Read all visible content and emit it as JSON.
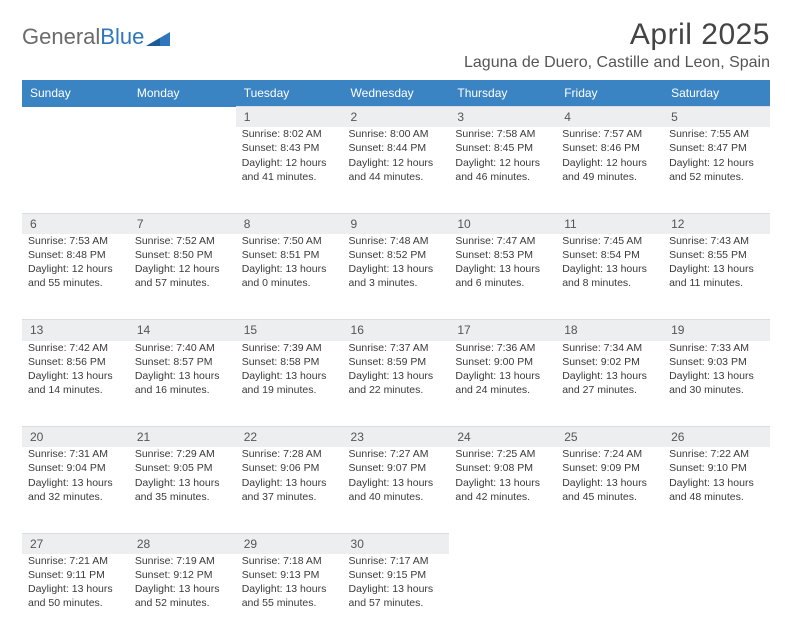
{
  "logo": {
    "part1": "General",
    "part2": "Blue"
  },
  "title": "April 2025",
  "location": "Laguna de Duero, Castille and Leon, Spain",
  "colors": {
    "header_bg": "#3b84c4",
    "header_fg": "#ffffff",
    "daynum_bg": "#eceef0",
    "page_bg": "#ffffff",
    "logo_gray": "#6b6b6b",
    "logo_blue": "#2f76bd"
  },
  "typography": {
    "title_fontsize": 30,
    "location_fontsize": 16,
    "dayheader_fontsize": 12,
    "cell_fontsize": 10.5
  },
  "day_headers": [
    "Sunday",
    "Monday",
    "Tuesday",
    "Wednesday",
    "Thursday",
    "Friday",
    "Saturday"
  ],
  "weeks": [
    [
      null,
      null,
      {
        "n": "1",
        "sr": "Sunrise: 8:02 AM",
        "ss": "Sunset: 8:43 PM",
        "dl": "Daylight: 12 hours and 41 minutes."
      },
      {
        "n": "2",
        "sr": "Sunrise: 8:00 AM",
        "ss": "Sunset: 8:44 PM",
        "dl": "Daylight: 12 hours and 44 minutes."
      },
      {
        "n": "3",
        "sr": "Sunrise: 7:58 AM",
        "ss": "Sunset: 8:45 PM",
        "dl": "Daylight: 12 hours and 46 minutes."
      },
      {
        "n": "4",
        "sr": "Sunrise: 7:57 AM",
        "ss": "Sunset: 8:46 PM",
        "dl": "Daylight: 12 hours and 49 minutes."
      },
      {
        "n": "5",
        "sr": "Sunrise: 7:55 AM",
        "ss": "Sunset: 8:47 PM",
        "dl": "Daylight: 12 hours and 52 minutes."
      }
    ],
    [
      {
        "n": "6",
        "sr": "Sunrise: 7:53 AM",
        "ss": "Sunset: 8:48 PM",
        "dl": "Daylight: 12 hours and 55 minutes."
      },
      {
        "n": "7",
        "sr": "Sunrise: 7:52 AM",
        "ss": "Sunset: 8:50 PM",
        "dl": "Daylight: 12 hours and 57 minutes."
      },
      {
        "n": "8",
        "sr": "Sunrise: 7:50 AM",
        "ss": "Sunset: 8:51 PM",
        "dl": "Daylight: 13 hours and 0 minutes."
      },
      {
        "n": "9",
        "sr": "Sunrise: 7:48 AM",
        "ss": "Sunset: 8:52 PM",
        "dl": "Daylight: 13 hours and 3 minutes."
      },
      {
        "n": "10",
        "sr": "Sunrise: 7:47 AM",
        "ss": "Sunset: 8:53 PM",
        "dl": "Daylight: 13 hours and 6 minutes."
      },
      {
        "n": "11",
        "sr": "Sunrise: 7:45 AM",
        "ss": "Sunset: 8:54 PM",
        "dl": "Daylight: 13 hours and 8 minutes."
      },
      {
        "n": "12",
        "sr": "Sunrise: 7:43 AM",
        "ss": "Sunset: 8:55 PM",
        "dl": "Daylight: 13 hours and 11 minutes."
      }
    ],
    [
      {
        "n": "13",
        "sr": "Sunrise: 7:42 AM",
        "ss": "Sunset: 8:56 PM",
        "dl": "Daylight: 13 hours and 14 minutes."
      },
      {
        "n": "14",
        "sr": "Sunrise: 7:40 AM",
        "ss": "Sunset: 8:57 PM",
        "dl": "Daylight: 13 hours and 16 minutes."
      },
      {
        "n": "15",
        "sr": "Sunrise: 7:39 AM",
        "ss": "Sunset: 8:58 PM",
        "dl": "Daylight: 13 hours and 19 minutes."
      },
      {
        "n": "16",
        "sr": "Sunrise: 7:37 AM",
        "ss": "Sunset: 8:59 PM",
        "dl": "Daylight: 13 hours and 22 minutes."
      },
      {
        "n": "17",
        "sr": "Sunrise: 7:36 AM",
        "ss": "Sunset: 9:00 PM",
        "dl": "Daylight: 13 hours and 24 minutes."
      },
      {
        "n": "18",
        "sr": "Sunrise: 7:34 AM",
        "ss": "Sunset: 9:02 PM",
        "dl": "Daylight: 13 hours and 27 minutes."
      },
      {
        "n": "19",
        "sr": "Sunrise: 7:33 AM",
        "ss": "Sunset: 9:03 PM",
        "dl": "Daylight: 13 hours and 30 minutes."
      }
    ],
    [
      {
        "n": "20",
        "sr": "Sunrise: 7:31 AM",
        "ss": "Sunset: 9:04 PM",
        "dl": "Daylight: 13 hours and 32 minutes."
      },
      {
        "n": "21",
        "sr": "Sunrise: 7:29 AM",
        "ss": "Sunset: 9:05 PM",
        "dl": "Daylight: 13 hours and 35 minutes."
      },
      {
        "n": "22",
        "sr": "Sunrise: 7:28 AM",
        "ss": "Sunset: 9:06 PM",
        "dl": "Daylight: 13 hours and 37 minutes."
      },
      {
        "n": "23",
        "sr": "Sunrise: 7:27 AM",
        "ss": "Sunset: 9:07 PM",
        "dl": "Daylight: 13 hours and 40 minutes."
      },
      {
        "n": "24",
        "sr": "Sunrise: 7:25 AM",
        "ss": "Sunset: 9:08 PM",
        "dl": "Daylight: 13 hours and 42 minutes."
      },
      {
        "n": "25",
        "sr": "Sunrise: 7:24 AM",
        "ss": "Sunset: 9:09 PM",
        "dl": "Daylight: 13 hours and 45 minutes."
      },
      {
        "n": "26",
        "sr": "Sunrise: 7:22 AM",
        "ss": "Sunset: 9:10 PM",
        "dl": "Daylight: 13 hours and 48 minutes."
      }
    ],
    [
      {
        "n": "27",
        "sr": "Sunrise: 7:21 AM",
        "ss": "Sunset: 9:11 PM",
        "dl": "Daylight: 13 hours and 50 minutes."
      },
      {
        "n": "28",
        "sr": "Sunrise: 7:19 AM",
        "ss": "Sunset: 9:12 PM",
        "dl": "Daylight: 13 hours and 52 minutes."
      },
      {
        "n": "29",
        "sr": "Sunrise: 7:18 AM",
        "ss": "Sunset: 9:13 PM",
        "dl": "Daylight: 13 hours and 55 minutes."
      },
      {
        "n": "30",
        "sr": "Sunrise: 7:17 AM",
        "ss": "Sunset: 9:15 PM",
        "dl": "Daylight: 13 hours and 57 minutes."
      },
      null,
      null,
      null
    ]
  ]
}
